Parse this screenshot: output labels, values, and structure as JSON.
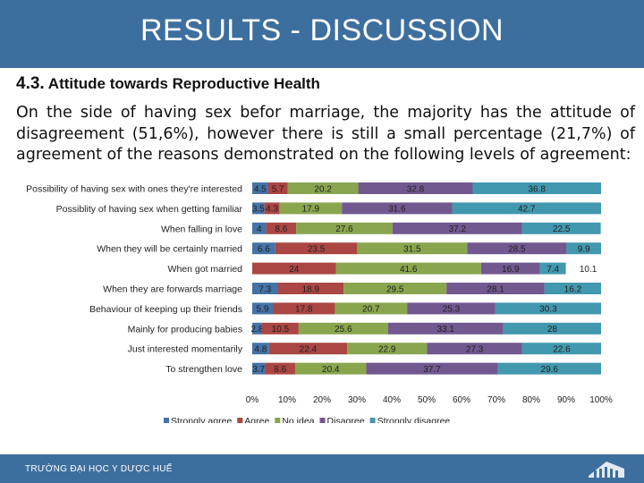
{
  "slide": {
    "title": "RESULTS - DISCUSSION",
    "section_number": "4.3.",
    "section_title": "Attitude towards Reproductive Health",
    "paragraph": "On the side of having sex befor marriage, the majority has the attitude of disagreement (51,6%), however there is still a small percentage (21,7%) of agreement of the reasons demonstrated on the following levels of agreement:",
    "footer_text": "TRƯỜNG ĐẠI HỌC Y DƯỢC HUẾ"
  },
  "chart_data": {
    "type": "bar",
    "orientation": "horizontal",
    "stacked": "percent",
    "title": "",
    "xlabel": "",
    "ylabel": "",
    "xlim": [
      0,
      100
    ],
    "x_ticks": [
      "0%",
      "10%",
      "20%",
      "30%",
      "40%",
      "50%",
      "60%",
      "70%",
      "80%",
      "90%",
      "100%"
    ],
    "legend_position": "bottom",
    "grid": false,
    "categories": [
      "Possibility of having sex with ones they're interested",
      "Possiblity of having sex when getting familiar",
      "When falling in love",
      "When they will be certainly married",
      "When got married",
      "When they are forwards marriage",
      "Behaviour of keeping up their friends",
      "Mainly for producing babies",
      "Just interested momentarily",
      "To strengthen love"
    ],
    "series": [
      {
        "name": "Strongly agree",
        "color": "#4572a7",
        "values": [
          4.5,
          3.5,
          4,
          6.6,
          0,
          7.3,
          5.9,
          2.8,
          4.8,
          3.7
        ]
      },
      {
        "name": "Agree",
        "color": "#aa4643",
        "values": [
          5.7,
          4.3,
          8.6,
          23.5,
          24,
          18.9,
          17.8,
          10.5,
          22.4,
          8.6
        ]
      },
      {
        "name": "No idea",
        "color": "#89a54e",
        "values": [
          20.2,
          17.9,
          27.6,
          31.5,
          41.6,
          29.5,
          20.7,
          25.6,
          22.9,
          20.4
        ]
      },
      {
        "name": "Disagree",
        "color": "#71588f",
        "values": [
          32.8,
          31.6,
          37.2,
          28.5,
          16.9,
          28.1,
          25.3,
          33.1,
          27.3,
          37.7
        ]
      },
      {
        "name": "Strongly disagree",
        "color": "#4198af",
        "values": [
          36.8,
          42.7,
          22.5,
          9.9,
          7.4,
          16.2,
          30.3,
          28,
          22.6,
          29.6
        ]
      }
    ],
    "extra_segment_labels": [
      {
        "category_index": 4,
        "value": 10.1,
        "color": "#4198af"
      }
    ]
  }
}
